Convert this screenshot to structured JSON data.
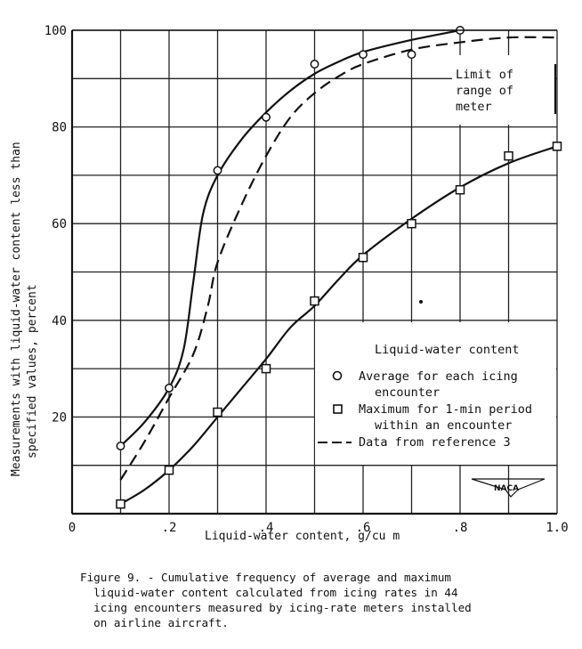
{
  "figure": {
    "caption_lines": [
      "Figure 9. - Cumulative frequency of average and maximum",
      "  liquid-water content calculated from icing rates in 44",
      "  icing encounters measured by icing-rate meters installed",
      "  on airline aircraft."
    ],
    "annotation_limit": [
      "Limit of",
      "range of",
      "meter"
    ],
    "logo_text": "NACA"
  },
  "chart_data": {
    "type": "line",
    "title": "",
    "xlabel": "Liquid-water content, g/cu m",
    "ylabel_lines": [
      "Measurements with liquid-water content less than",
      "specified values, percent"
    ],
    "xlim": [
      0,
      1.0
    ],
    "ylim": [
      0,
      100
    ],
    "grid": true,
    "x_ticks": [
      0,
      0.1,
      0.2,
      0.3,
      0.4,
      0.5,
      0.6,
      0.7,
      0.8,
      0.9,
      1.0
    ],
    "x_tick_labels": [
      {
        "x": 0,
        "label": "0"
      },
      {
        "x": 0.2,
        "label": ".2"
      },
      {
        "x": 0.4,
        "label": ".4"
      },
      {
        "x": 0.6,
        "label": ".6"
      },
      {
        "x": 0.8,
        "label": ".8"
      },
      {
        "x": 1.0,
        "label": "1.0"
      }
    ],
    "y_ticks": [
      0,
      10,
      20,
      30,
      40,
      50,
      60,
      70,
      80,
      90,
      100
    ],
    "y_tick_labels": [
      {
        "y": 20,
        "label": "20"
      },
      {
        "y": 40,
        "label": "40"
      },
      {
        "y": 60,
        "label": "60"
      },
      {
        "y": 80,
        "label": "80"
      },
      {
        "y": 100,
        "label": "100"
      }
    ],
    "legend": {
      "title": "Liquid-water content",
      "position": "lower right",
      "entries": [
        {
          "marker": "circle",
          "lines": [
            "Average for each icing",
            "encounter"
          ]
        },
        {
          "marker": "square",
          "lines": [
            "Maximum for 1-min period",
            "within an encounter"
          ]
        },
        {
          "marker": "dashed-line",
          "lines": [
            "Data from reference 3"
          ]
        }
      ]
    },
    "series": [
      {
        "name": "Average for each icing encounter",
        "marker": "circle",
        "points": [
          [
            0.1,
            14
          ],
          [
            0.2,
            26
          ],
          [
            0.3,
            71
          ],
          [
            0.4,
            82
          ],
          [
            0.5,
            93
          ],
          [
            0.6,
            95
          ],
          [
            0.7,
            95
          ],
          [
            0.8,
            100
          ]
        ],
        "curve": [
          [
            0.1,
            14
          ],
          [
            0.15,
            19
          ],
          [
            0.2,
            26
          ],
          [
            0.23,
            34
          ],
          [
            0.25,
            48
          ],
          [
            0.27,
            62
          ],
          [
            0.3,
            70
          ],
          [
            0.35,
            77.5
          ],
          [
            0.4,
            83
          ],
          [
            0.45,
            87.5
          ],
          [
            0.5,
            91
          ],
          [
            0.55,
            93.5
          ],
          [
            0.6,
            95.5
          ],
          [
            0.7,
            98
          ],
          [
            0.8,
            100
          ]
        ]
      },
      {
        "name": "Maximum for 1-min period within an encounter",
        "marker": "square",
        "points": [
          [
            0.1,
            2
          ],
          [
            0.2,
            9
          ],
          [
            0.3,
            21
          ],
          [
            0.4,
            30
          ],
          [
            0.5,
            44
          ],
          [
            0.6,
            53
          ],
          [
            0.7,
            60
          ],
          [
            0.8,
            67
          ],
          [
            0.9,
            74
          ],
          [
            1.0,
            76
          ]
        ],
        "curve": [
          [
            0.1,
            2
          ],
          [
            0.15,
            5
          ],
          [
            0.2,
            9
          ],
          [
            0.25,
            14
          ],
          [
            0.3,
            20
          ],
          [
            0.35,
            26
          ],
          [
            0.4,
            32
          ],
          [
            0.45,
            38.5
          ],
          [
            0.5,
            43
          ],
          [
            0.55,
            48.5
          ],
          [
            0.6,
            53.5
          ],
          [
            0.7,
            61
          ],
          [
            0.8,
            67.5
          ],
          [
            0.9,
            72.5
          ],
          [
            1.0,
            76
          ]
        ]
      },
      {
        "name": "Data from reference 3",
        "marker": "dashed-line",
        "points": [],
        "curve": [
          [
            0.1,
            7
          ],
          [
            0.15,
            15
          ],
          [
            0.2,
            24
          ],
          [
            0.25,
            33
          ],
          [
            0.28,
            43
          ],
          [
            0.3,
            52
          ],
          [
            0.35,
            64
          ],
          [
            0.4,
            74
          ],
          [
            0.45,
            82
          ],
          [
            0.5,
            87
          ],
          [
            0.55,
            90.5
          ],
          [
            0.6,
            93
          ],
          [
            0.7,
            96
          ],
          [
            0.8,
            97.5
          ],
          [
            0.9,
            98.5
          ],
          [
            1.0,
            98.5
          ]
        ]
      }
    ],
    "annotations": [
      {
        "text": "Limit of range of meter",
        "x": 0.82,
        "y": 87
      }
    ]
  }
}
